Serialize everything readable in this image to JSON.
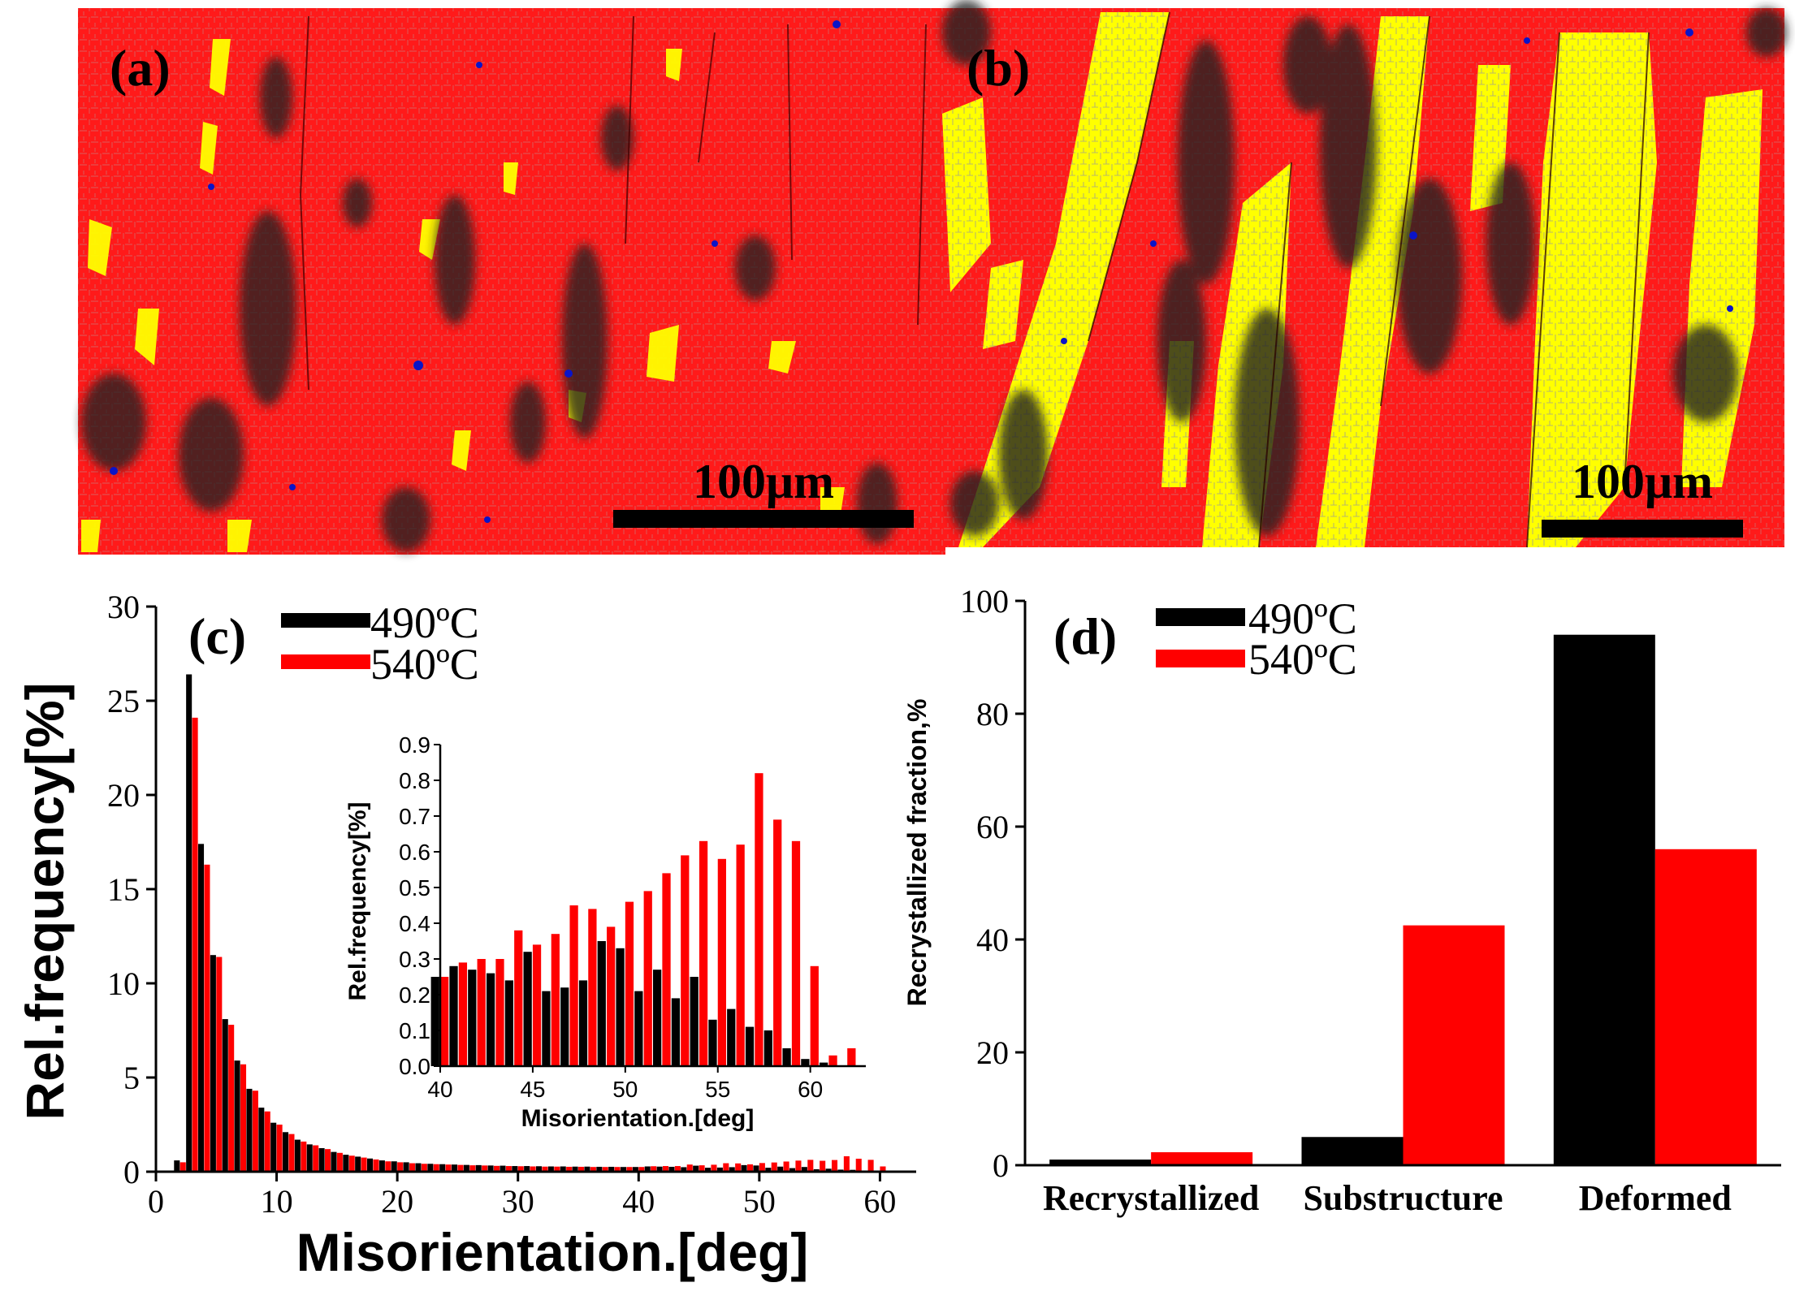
{
  "panels": {
    "a": {
      "label": "(a)",
      "scalebar": "100μm"
    },
    "b": {
      "label": "(b)",
      "scalebar": "100μm"
    }
  },
  "colors": {
    "deformed": "#ff0000",
    "substructure": "#ffff00",
    "recrystallized": "#0000cc",
    "boundary_gray": "#9e9e9e",
    "series_490": "#000000",
    "series_540": "#ff0000"
  },
  "chart_data": [
    {
      "id": "c",
      "type": "bar",
      "panel_label": "(c)",
      "xlabel": "Misorientation.[deg]",
      "ylabel": "Rel.frequency[%]",
      "xlim": [
        0,
        63
      ],
      "ylim": [
        0,
        30
      ],
      "xticks": [
        0,
        10,
        20,
        30,
        40,
        50,
        60
      ],
      "yticks": [
        0,
        5,
        10,
        15,
        20,
        25,
        30
      ],
      "legend_position": "top-left",
      "bin_width": 1,
      "x": [
        2,
        3,
        4,
        5,
        6,
        7,
        8,
        9,
        10,
        11,
        12,
        13,
        14,
        15,
        16,
        17,
        18,
        19,
        20,
        21,
        22,
        23,
        24,
        25,
        26,
        27,
        28,
        29,
        30,
        31,
        32,
        33,
        34,
        35,
        36,
        37,
        38,
        39,
        40,
        41,
        42,
        43,
        44,
        45,
        46,
        47,
        48,
        49,
        50,
        51,
        52,
        53,
        54,
        55,
        56,
        57,
        58,
        59,
        60,
        61,
        62
      ],
      "series": [
        {
          "name": "490ºC",
          "values": [
            0.6,
            26.4,
            17.4,
            11.5,
            8.1,
            5.9,
            4.4,
            3.4,
            2.6,
            2.1,
            1.7,
            1.45,
            1.25,
            1.05,
            0.9,
            0.8,
            0.7,
            0.6,
            0.55,
            0.5,
            0.45,
            0.42,
            0.4,
            0.38,
            0.36,
            0.35,
            0.33,
            0.32,
            0.3,
            0.3,
            0.29,
            0.28,
            0.28,
            0.27,
            0.27,
            0.26,
            0.26,
            0.25,
            0.25,
            0.28,
            0.27,
            0.26,
            0.24,
            0.32,
            0.21,
            0.22,
            0.24,
            0.35,
            0.33,
            0.21,
            0.27,
            0.19,
            0.25,
            0.13,
            0.16,
            0.11,
            0.1,
            0.05,
            0.02,
            0.01,
            0.0
          ]
        },
        {
          "name": "540ºC",
          "values": [
            0.5,
            24.1,
            16.3,
            11.4,
            7.8,
            5.7,
            4.3,
            3.2,
            2.5,
            2.0,
            1.6,
            1.4,
            1.2,
            1.0,
            0.85,
            0.75,
            0.65,
            0.55,
            0.5,
            0.45,
            0.42,
            0.4,
            0.38,
            0.36,
            0.34,
            0.33,
            0.31,
            0.3,
            0.29,
            0.28,
            0.27,
            0.27,
            0.26,
            0.26,
            0.25,
            0.25,
            0.25,
            0.25,
            0.25,
            0.29,
            0.3,
            0.3,
            0.38,
            0.34,
            0.37,
            0.45,
            0.44,
            0.39,
            0.46,
            0.49,
            0.54,
            0.59,
            0.63,
            0.58,
            0.62,
            0.82,
            0.69,
            0.63,
            0.28,
            0.03,
            0.05
          ]
        }
      ],
      "inset": {
        "xlabel": "Misorientation.[deg]",
        "ylabel": "Rel.frequency[%]",
        "xlim": [
          40,
          63
        ],
        "ylim": [
          0,
          0.9
        ],
        "xticks": [
          40,
          45,
          50,
          55,
          60
        ],
        "yticks": [
          0.0,
          0.1,
          0.2,
          0.3,
          0.4,
          0.5,
          0.6,
          0.7,
          0.8,
          0.9
        ]
      }
    },
    {
      "id": "d",
      "type": "bar",
      "panel_label": "(d)",
      "ylabel": "Recrystallized fraction,%",
      "xlabel": "",
      "ylim": [
        0,
        100
      ],
      "yticks": [
        0,
        20,
        40,
        60,
        80,
        100
      ],
      "legend_position": "top-left",
      "categories": [
        "Recrystallized",
        "Substructure",
        "Deformed"
      ],
      "series": [
        {
          "name": "490ºC",
          "values": [
            1.0,
            5.0,
            94.0
          ]
        },
        {
          "name": "540ºC",
          "values": [
            2.3,
            42.5,
            56.0
          ]
        }
      ]
    }
  ]
}
